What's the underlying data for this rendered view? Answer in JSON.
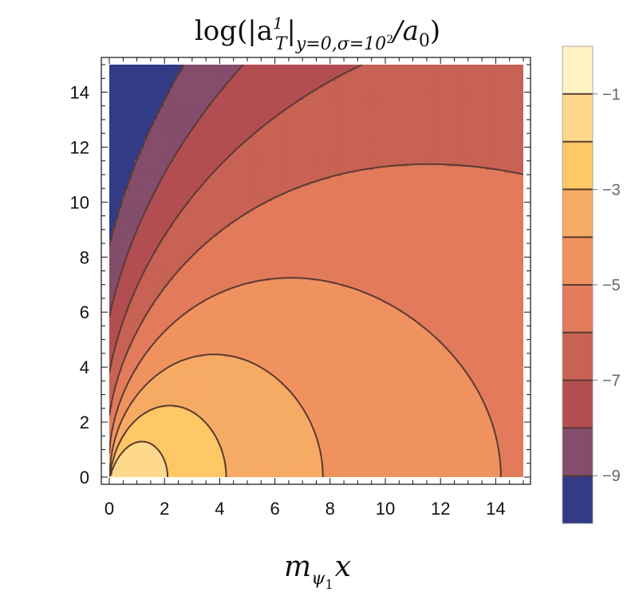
{
  "chart_data": {
    "type": "contour",
    "title": {
      "prefix": "log(|a",
      "sup": "1",
      "sub_T": "T",
      "mid": "|",
      "sub_cond": "y=0,σ=10",
      "sub_cond_exp": "2",
      "suffix": "/a",
      "suffix_sub": "0",
      "close": ")"
    },
    "xlabel": {
      "base": "m",
      "sub": "ψ",
      "subsub": "1",
      "var": "x"
    },
    "ylabel": "",
    "xlim": [
      0,
      15
    ],
    "ylim": [
      0,
      15
    ],
    "x_ticks": [
      0,
      2,
      4,
      6,
      8,
      10,
      12,
      14
    ],
    "y_ticks": [
      0,
      2,
      4,
      6,
      8,
      10,
      12,
      14
    ],
    "x_tick_labels": [
      "0",
      "2",
      "4",
      "6",
      "8",
      "10",
      "12",
      "14"
    ],
    "y_tick_labels": [
      "0",
      "2",
      "4",
      "6",
      "8",
      "10",
      "12",
      "14"
    ],
    "contour_levels": [
      -9,
      -8,
      -7,
      -6,
      -5,
      -4,
      -3,
      -2,
      -1
    ],
    "colorbar": {
      "range": [
        -10,
        0
      ],
      "tick_labels": [
        "-1",
        "-3",
        "-5",
        "-7",
        "-9"
      ],
      "tick_values": [
        -1,
        -3,
        -5,
        -7,
        -9
      ],
      "bands": [
        {
          "from": -10,
          "to": -9,
          "color": "#323b85"
        },
        {
          "from": -9,
          "to": -8,
          "color": "#854d6c"
        },
        {
          "from": -8,
          "to": -7,
          "color": "#b24e52"
        },
        {
          "from": -7,
          "to": -6,
          "color": "#c76255"
        },
        {
          "from": -6,
          "to": -5,
          "color": "#e27b5b"
        },
        {
          "from": -5,
          "to": -4,
          "color": "#f0925f"
        },
        {
          "from": -4,
          "to": -3,
          "color": "#f6ab64"
        },
        {
          "from": -3,
          "to": -2,
          "color": "#fdc865"
        },
        {
          "from": -2,
          "to": -1,
          "color": "#fed98d"
        },
        {
          "from": -1,
          "to": 0,
          "color": "#fff2c3"
        }
      ]
    }
  },
  "colors": {
    "contour_line": "#5a3a30",
    "blank_region": "#ffffff",
    "frame": "#111111"
  }
}
